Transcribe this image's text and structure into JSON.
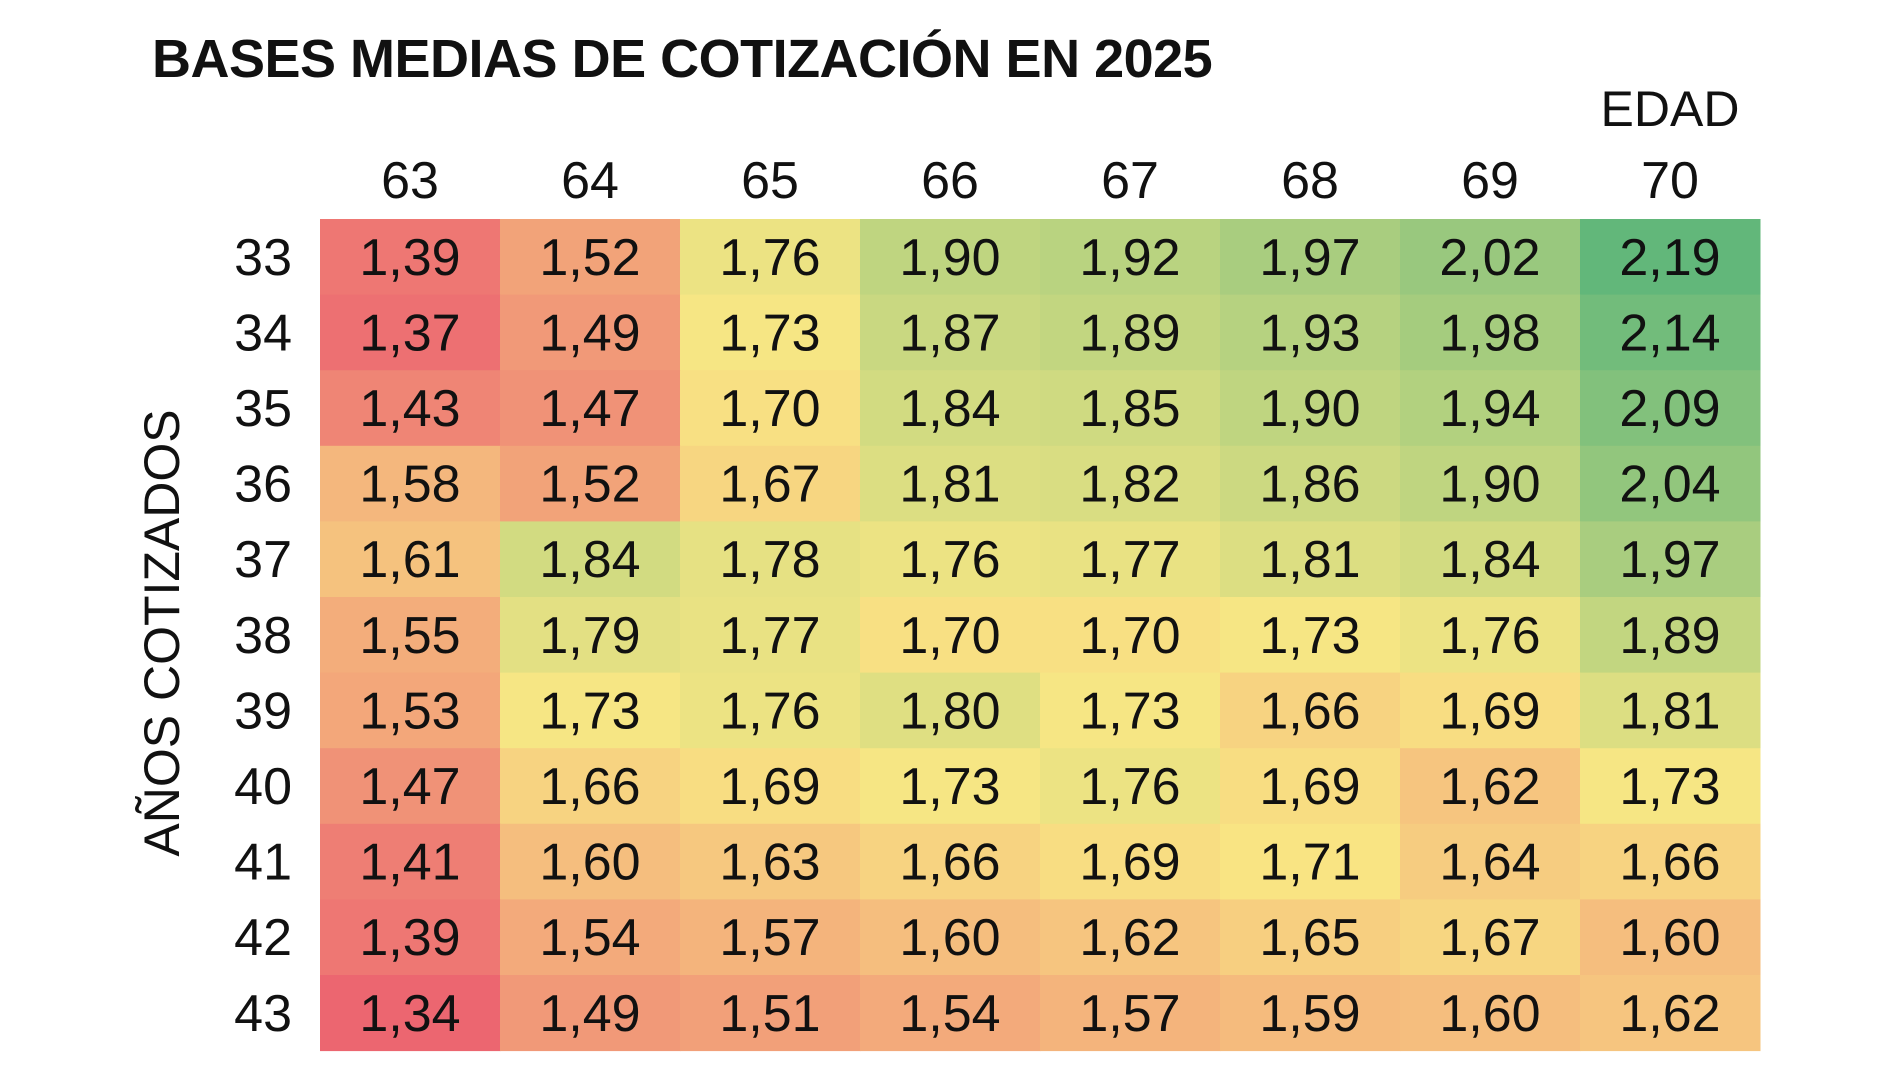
{
  "chart_data": {
    "type": "heatmap",
    "title": "BASES MEDIAS DE COTIZACIÓN EN 2025",
    "xlabel": "EDAD",
    "ylabel": "AÑOS COTIZADOS",
    "x": [
      "63",
      "64",
      "65",
      "66",
      "67",
      "68",
      "69",
      "70"
    ],
    "y": [
      "33",
      "34",
      "35",
      "36",
      "37",
      "38",
      "39",
      "40",
      "41",
      "42",
      "43"
    ],
    "values": [
      [
        "1,39",
        "1,52",
        "1,76",
        "1,90",
        "1,92",
        "1,97",
        "2,02",
        "2,19"
      ],
      [
        "1,37",
        "1,49",
        "1,73",
        "1,87",
        "1,89",
        "1,93",
        "1,98",
        "2,14"
      ],
      [
        "1,43",
        "1,47",
        "1,70",
        "1,84",
        "1,85",
        "1,90",
        "1,94",
        "2,09"
      ],
      [
        "1,58",
        "1,52",
        "1,67",
        "1,81",
        "1,82",
        "1,86",
        "1,90",
        "2,04"
      ],
      [
        "1,61",
        "1,84",
        "1,78",
        "1,76",
        "1,77",
        "1,81",
        "1,84",
        "1,97"
      ],
      [
        "1,55",
        "1,79",
        "1,77",
        "1,70",
        "1,70",
        "1,73",
        "1,76",
        "1,89"
      ],
      [
        "1,53",
        "1,73",
        "1,76",
        "1,80",
        "1,73",
        "1,66",
        "1,69",
        "1,81"
      ],
      [
        "1,47",
        "1,66",
        "1,69",
        "1,73",
        "1,76",
        "1,69",
        "1,62",
        "1,73"
      ],
      [
        "1,41",
        "1,60",
        "1,63",
        "1,66",
        "1,69",
        "1,71",
        "1,64",
        "1,66"
      ],
      [
        "1,39",
        "1,54",
        "1,57",
        "1,60",
        "1,62",
        "1,65",
        "1,67",
        "1,60"
      ],
      [
        "1,34",
        "1,49",
        "1,51",
        "1,54",
        "1,57",
        "1,59",
        "1,60",
        "1,62"
      ]
    ],
    "color_scale": {
      "low": "#ec6670",
      "mid": "#f9e784",
      "high": "#62b77a",
      "range": [
        1.34,
        1.72,
        2.19
      ]
    }
  }
}
